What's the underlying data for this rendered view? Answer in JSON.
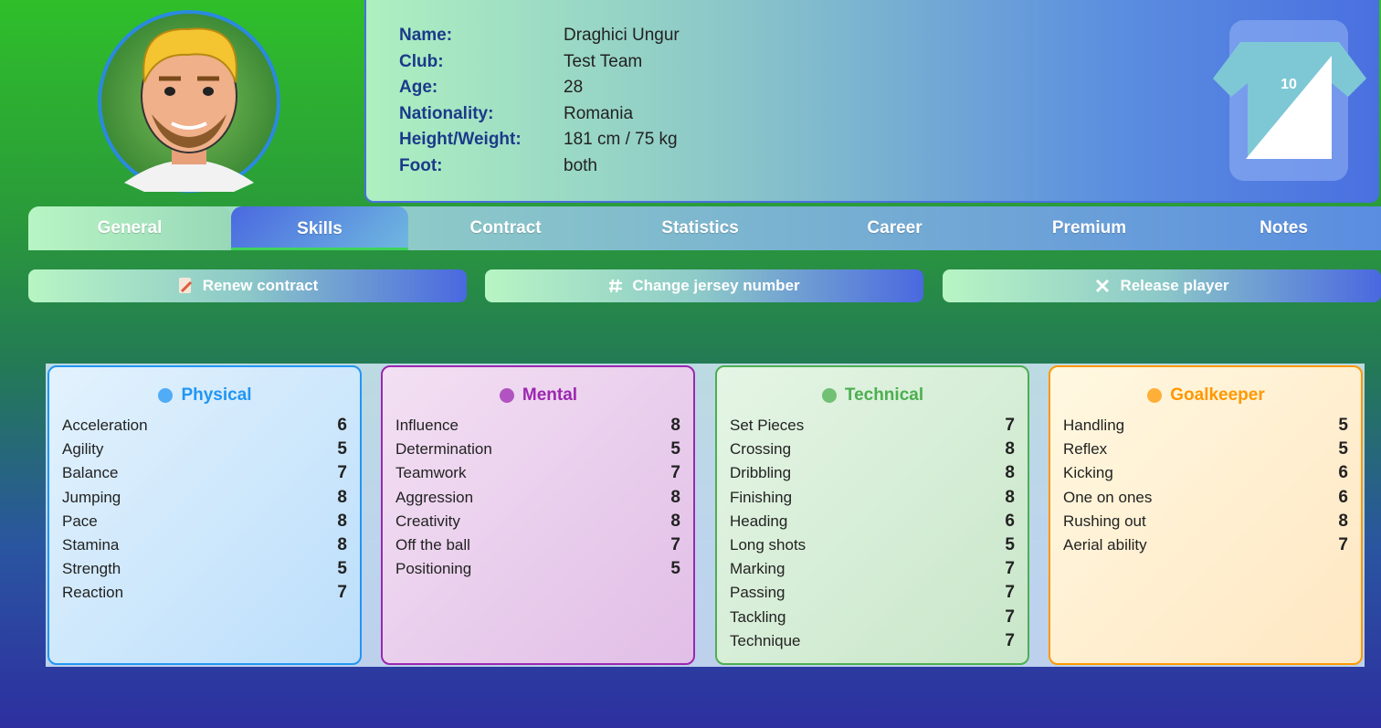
{
  "info": [
    {
      "label": "Name:",
      "value": "Draghici Ungur"
    },
    {
      "label": "Club:",
      "value": "Test Team"
    },
    {
      "label": "Age:",
      "value": "28"
    },
    {
      "label": "Nationality:",
      "value": "Romania"
    },
    {
      "label": "Height/Weight:",
      "value": "181 cm / 75 kg"
    },
    {
      "label": "Foot:",
      "value": "both"
    }
  ],
  "jersey_number": "10",
  "tabs": [
    "General",
    "Skills",
    "Contract",
    "Statistics",
    "Career",
    "Premium",
    "Notes"
  ],
  "buttons": [
    "Renew contract",
    "Change jersey number",
    "Release player"
  ],
  "skill_groups": [
    {
      "title": "Physical",
      "color": "#2196f3",
      "skills": [
        {
          "name": "Acceleration",
          "value": 6
        },
        {
          "name": "Agility",
          "value": 5
        },
        {
          "name": "Balance",
          "value": 7
        },
        {
          "name": "Jumping",
          "value": 8
        },
        {
          "name": "Pace",
          "value": 8
        },
        {
          "name": "Stamina",
          "value": 8
        },
        {
          "name": "Strength",
          "value": 5
        },
        {
          "name": "Reaction",
          "value": 7
        }
      ]
    },
    {
      "title": "Mental",
      "color": "#9c27b0",
      "skills": [
        {
          "name": "Influence",
          "value": 8
        },
        {
          "name": "Determination",
          "value": 5
        },
        {
          "name": "Teamwork",
          "value": 7
        },
        {
          "name": "Aggression",
          "value": 8
        },
        {
          "name": "Creativity",
          "value": 8
        },
        {
          "name": "Off the ball",
          "value": 7
        },
        {
          "name": "Positioning",
          "value": 5
        }
      ]
    },
    {
      "title": "Technical",
      "color": "#4caf50",
      "skills": [
        {
          "name": "Set Pieces",
          "value": 7
        },
        {
          "name": "Crossing",
          "value": 8
        },
        {
          "name": "Dribbling",
          "value": 8
        },
        {
          "name": "Finishing",
          "value": 8
        },
        {
          "name": "Heading",
          "value": 6
        },
        {
          "name": "Long shots",
          "value": 5
        },
        {
          "name": "Marking",
          "value": 7
        },
        {
          "name": "Passing",
          "value": 7
        },
        {
          "name": "Tackling",
          "value": 7
        },
        {
          "name": "Technique",
          "value": 7
        }
      ]
    },
    {
      "title": "Goalkeeper",
      "color": "#ff9800",
      "skills": [
        {
          "name": "Handling",
          "value": 5
        },
        {
          "name": "Reflex",
          "value": 5
        },
        {
          "name": "Kicking",
          "value": 6
        },
        {
          "name": "One on ones",
          "value": 6
        },
        {
          "name": "Rushing out",
          "value": 8
        },
        {
          "name": "Aerial ability",
          "value": 7
        }
      ]
    }
  ]
}
